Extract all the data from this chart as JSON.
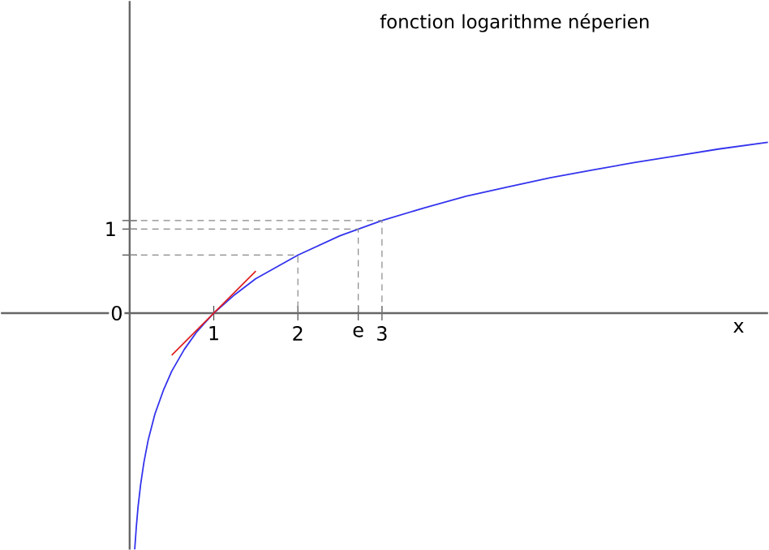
{
  "chart_data": {
    "type": "line",
    "title": "fonction logarithme néperien",
    "xlabel": "x",
    "xlim": [
      -1.53,
      7.59
    ],
    "ylim": [
      -2.81,
      3.71
    ],
    "xticks": [
      1,
      2,
      {
        "value": 2.718,
        "label": "e"
      },
      3
    ],
    "yticks": [
      0,
      {
        "value": 0.69,
        "label": null
      },
      1,
      {
        "value": 1.1,
        "label": null
      }
    ],
    "grid": false,
    "marker": "none",
    "series": [
      {
        "color": "#3333ee",
        "line_style": "solid",
        "x": [
          0.06,
          0.08,
          0.1,
          0.13,
          0.17,
          0.22,
          0.3,
          0.4,
          0.5,
          0.65,
          0.8,
          1,
          1.25,
          1.5,
          2,
          2.5,
          3,
          3.5,
          4,
          4.5,
          5,
          5.5,
          6,
          6.5,
          7,
          7.59
        ],
        "values": [
          -2.81,
          -2.53,
          -2.3,
          -2.04,
          -1.77,
          -1.51,
          -1.2,
          -0.92,
          -0.69,
          -0.43,
          -0.22,
          0,
          0.22,
          0.41,
          0.69,
          0.92,
          1.1,
          1.25,
          1.39,
          1.5,
          1.61,
          1.7,
          1.79,
          1.87,
          1.95,
          2.03
        ]
      },
      {
        "color": "#dd2222",
        "line_style": "solid",
        "x": [
          0.5,
          1.5
        ],
        "values": [
          -0.5,
          0.5
        ]
      },
      {
        "color": "#888888",
        "line_style": "dashed",
        "x": [
          0,
          2,
          2
        ],
        "values": [
          0.69,
          0.69,
          0
        ]
      },
      {
        "color": "#888888",
        "line_style": "dashed",
        "x": [
          0,
          2.718,
          2.718
        ],
        "values": [
          1,
          1,
          0
        ]
      },
      {
        "color": "#888888",
        "line_style": "dashed",
        "x": [
          0,
          3,
          3
        ],
        "values": [
          1.1,
          1.1,
          0
        ]
      }
    ]
  }
}
